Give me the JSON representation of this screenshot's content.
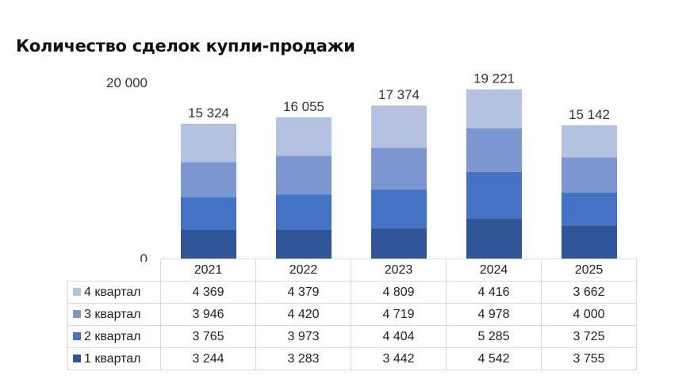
{
  "title": "Количество сделок купли-продажи",
  "colors": {
    "q1": "#2f5597",
    "q2": "#4472c4",
    "q3": "#7b96d1",
    "q4": "#b4c1e0"
  },
  "chart_data": {
    "type": "bar",
    "stacked": true,
    "categories": [
      "2021",
      "2022",
      "2023",
      "2024",
      "2025"
    ],
    "series": [
      {
        "name": "1 квартал",
        "values": [
          3244,
          3283,
          3442,
          4542,
          3755
        ]
      },
      {
        "name": "2 квартал",
        "values": [
          3765,
          3973,
          4404,
          5285,
          3725
        ]
      },
      {
        "name": "3 квартал",
        "values": [
          3946,
          4420,
          4719,
          4978,
          4000
        ]
      },
      {
        "name": "4 квартал",
        "values": [
          4369,
          4379,
          4809,
          4416,
          3662
        ]
      }
    ],
    "totals": [
      15324,
      16055,
      17374,
      19221,
      15142
    ],
    "totals_labels": [
      "15 324",
      "16 055",
      "17 374",
      "19 221",
      "15 142"
    ],
    "y_ticks": [
      0,
      20000
    ],
    "y_tick_labels": [
      "0",
      "20 000"
    ],
    "ylim": [
      0,
      20000
    ],
    "title": "Количество сделок купли-продажи",
    "legend": "data-table"
  },
  "table": {
    "rows": [
      {
        "label": "4 квартал",
        "series": "q4",
        "cells": [
          "4 369",
          "4 379",
          "4 809",
          "4 416",
          "3 662"
        ]
      },
      {
        "label": "3 квартал",
        "series": "q3",
        "cells": [
          "3 946",
          "4 420",
          "4 719",
          "4 978",
          "4 000"
        ]
      },
      {
        "label": "2 квартал",
        "series": "q2",
        "cells": [
          "3 765",
          "3 973",
          "4 404",
          "5 285",
          "3 725"
        ]
      },
      {
        "label": "1 квартал",
        "series": "q1",
        "cells": [
          "3 244",
          "3 283",
          "3 442",
          "4 542",
          "3 755"
        ]
      }
    ]
  }
}
